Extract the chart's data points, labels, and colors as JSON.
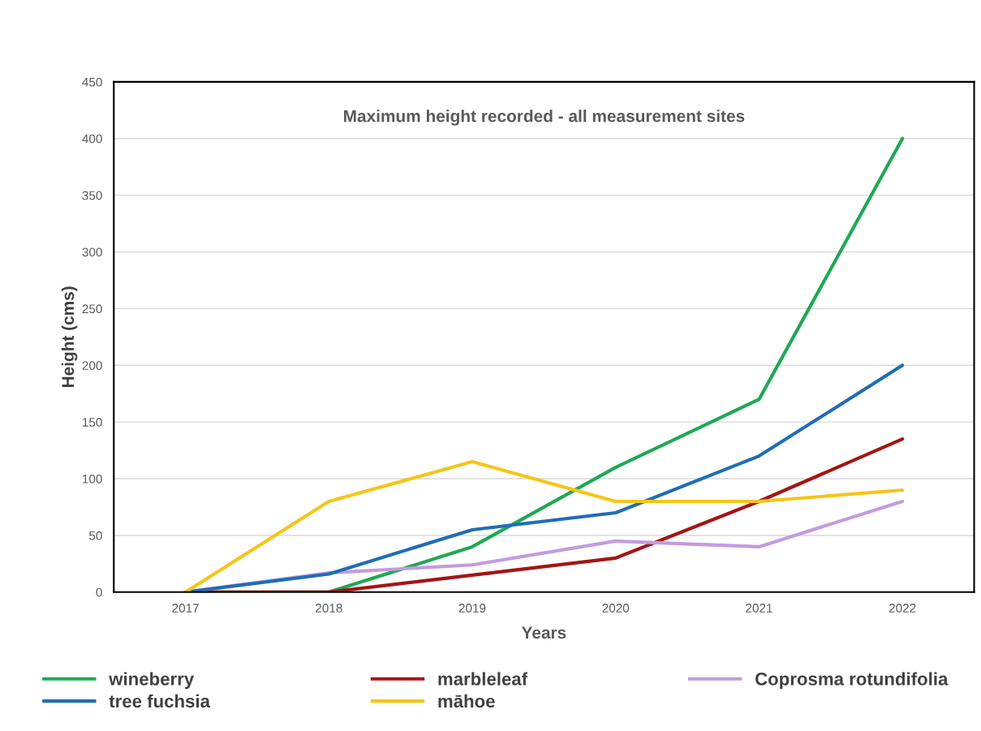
{
  "chart_data": {
    "type": "line",
    "title": "Maximum height recorded - all measurement sites",
    "xlabel": "Years",
    "ylabel": "Height (cms)",
    "categories": [
      "2017",
      "2018",
      "2019",
      "2020",
      "2021",
      "2022"
    ],
    "series": [
      {
        "name": "wineberry",
        "color": "#1fa855",
        "values": [
          0,
          0,
          40,
          110,
          170,
          400
        ]
      },
      {
        "name": "marbleleaf",
        "color": "#a31515",
        "values": [
          0,
          0,
          15,
          30,
          80,
          135
        ]
      },
      {
        "name": "Coprosma rotundifolia",
        "color": "#c39be0",
        "values": [
          0,
          17,
          24,
          45,
          40,
          80
        ]
      },
      {
        "name": "tree fuchsia",
        "color": "#1f6db5",
        "values": [
          0,
          16,
          55,
          70,
          120,
          200
        ]
      },
      {
        "name": "māhoe",
        "color": "#f5c518",
        "values": [
          0,
          80,
          115,
          80,
          80,
          90
        ]
      }
    ],
    "ylim": [
      0,
      450
    ],
    "yticks": [
      0,
      50,
      100,
      150,
      200,
      250,
      300,
      350,
      400,
      450
    ],
    "grid": "y",
    "legend": "bottom",
    "marker": "none",
    "line_style": "solid"
  }
}
